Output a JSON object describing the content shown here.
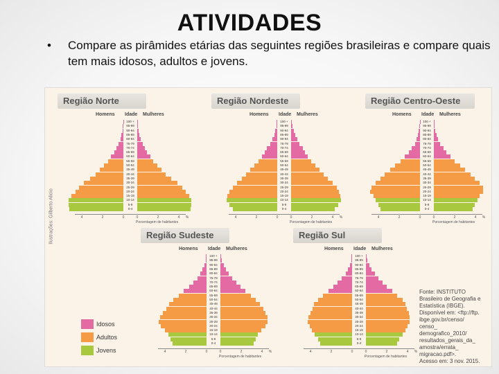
{
  "title": "ATIVIDADES",
  "bullet": {
    "marker": "•",
    "text": "Compare as pirâmides etárias das seguintes regiões brasileiras e compare quais tem mais idosos, adultos e jovens."
  },
  "figure": {
    "credit": "Ilustrações: Gilberto Alicio",
    "col_labels": {
      "men": "Homens",
      "age": "Idade",
      "women": "Mulheres"
    },
    "axis_ticks": [
      "4",
      "2",
      "0",
      "0",
      "2",
      "4",
      "%"
    ],
    "axis_label": "Porcentagem de habitantes",
    "colors": {
      "idosos": "#e46aa3",
      "adultos": "#f59a45",
      "jovens": "#a8c93f"
    },
    "age_groups": [
      "100 +",
      "95-99",
      "90-94",
      "85-89",
      "80-84",
      "75-79",
      "70-74",
      "65-69",
      "60-64",
      "55-59",
      "50-54",
      "45-49",
      "40-44",
      "35-39",
      "30-34",
      "25-29",
      "20-24",
      "15-19",
      "10-14",
      "5-9",
      "0-4"
    ],
    "regions": [
      {
        "name": "Região Norte",
        "men": [
          0.02,
          0.05,
          0.1,
          0.2,
          0.3,
          0.5,
          0.7,
          0.9,
          1.2,
          1.5,
          1.9,
          2.3,
          2.7,
          3.2,
          3.8,
          4.3,
          4.6,
          5.0,
          5.3,
          5.3,
          5.2
        ],
        "women": [
          0.03,
          0.06,
          0.12,
          0.22,
          0.33,
          0.55,
          0.75,
          0.95,
          1.25,
          1.55,
          1.95,
          2.35,
          2.75,
          3.25,
          3.85,
          4.35,
          4.65,
          5.0,
          5.2,
          5.2,
          5.1
        ]
      },
      {
        "name": "Região Nordeste",
        "men": [
          0.05,
          0.1,
          0.2,
          0.3,
          0.5,
          0.7,
          1.0,
          1.2,
          1.5,
          1.8,
          2.2,
          2.6,
          3.0,
          3.4,
          3.9,
          4.3,
          4.6,
          4.8,
          4.9,
          4.6,
          4.3
        ],
        "women": [
          0.07,
          0.13,
          0.25,
          0.38,
          0.6,
          0.8,
          1.1,
          1.3,
          1.6,
          1.9,
          2.3,
          2.7,
          3.1,
          3.5,
          4.0,
          4.4,
          4.6,
          4.7,
          4.8,
          4.5,
          4.2
        ]
      },
      {
        "name": "Região Centro-Oeste",
        "men": [
          0.03,
          0.06,
          0.12,
          0.2,
          0.35,
          0.5,
          0.8,
          1.1,
          1.5,
          1.9,
          2.4,
          2.9,
          3.4,
          3.8,
          4.3,
          4.7,
          4.8,
          4.5,
          4.3,
          4.0,
          3.8
        ],
        "women": [
          0.04,
          0.08,
          0.15,
          0.25,
          0.4,
          0.6,
          0.9,
          1.2,
          1.6,
          2.0,
          2.5,
          3.0,
          3.5,
          3.9,
          4.4,
          4.7,
          4.7,
          4.4,
          4.2,
          3.9,
          3.7
        ]
      },
      {
        "name": "Região Sudeste",
        "men": [
          0.05,
          0.1,
          0.2,
          0.4,
          0.6,
          0.9,
          1.3,
          1.7,
          2.2,
          2.7,
          3.2,
          3.6,
          3.9,
          4.2,
          4.5,
          4.6,
          4.4,
          4.0,
          3.7,
          3.5,
          3.3
        ],
        "women": [
          0.08,
          0.15,
          0.3,
          0.55,
          0.8,
          1.1,
          1.5,
          1.9,
          2.4,
          2.9,
          3.4,
          3.8,
          4.1,
          4.3,
          4.5,
          4.5,
          4.3,
          3.9,
          3.6,
          3.4,
          3.2
        ]
      },
      {
        "name": "Região Sul",
        "men": [
          0.05,
          0.1,
          0.2,
          0.4,
          0.6,
          1.0,
          1.4,
          1.8,
          2.3,
          2.8,
          3.3,
          3.7,
          3.8,
          4.0,
          4.2,
          4.3,
          4.1,
          3.9,
          3.6,
          3.3,
          3.1
        ],
        "women": [
          0.08,
          0.15,
          0.3,
          0.55,
          0.85,
          1.2,
          1.6,
          2.0,
          2.5,
          3.0,
          3.5,
          3.8,
          3.9,
          4.1,
          4.2,
          4.2,
          4.0,
          3.8,
          3.5,
          3.2,
          3.0
        ]
      }
    ],
    "legend": [
      {
        "label": "Idosos",
        "color": "#e46aa3"
      },
      {
        "label": "Adultos",
        "color": "#f59a45"
      },
      {
        "label": "Jovens",
        "color": "#a8c93f"
      }
    ],
    "source_lines": [
      "Fonte: INSTITUTO",
      "Brasileiro de Geografia e",
      "Estatística (IBGE).",
      "Disponível em: <ftp://ftp.",
      "ibge.gov.br/censo/",
      "censo_",
      "demografico_2010/",
      "resultados_gerais_da_",
      "amostra/errata_",
      "migracao.pdf>.",
      "Acesso em: 3 nov. 2015."
    ]
  }
}
